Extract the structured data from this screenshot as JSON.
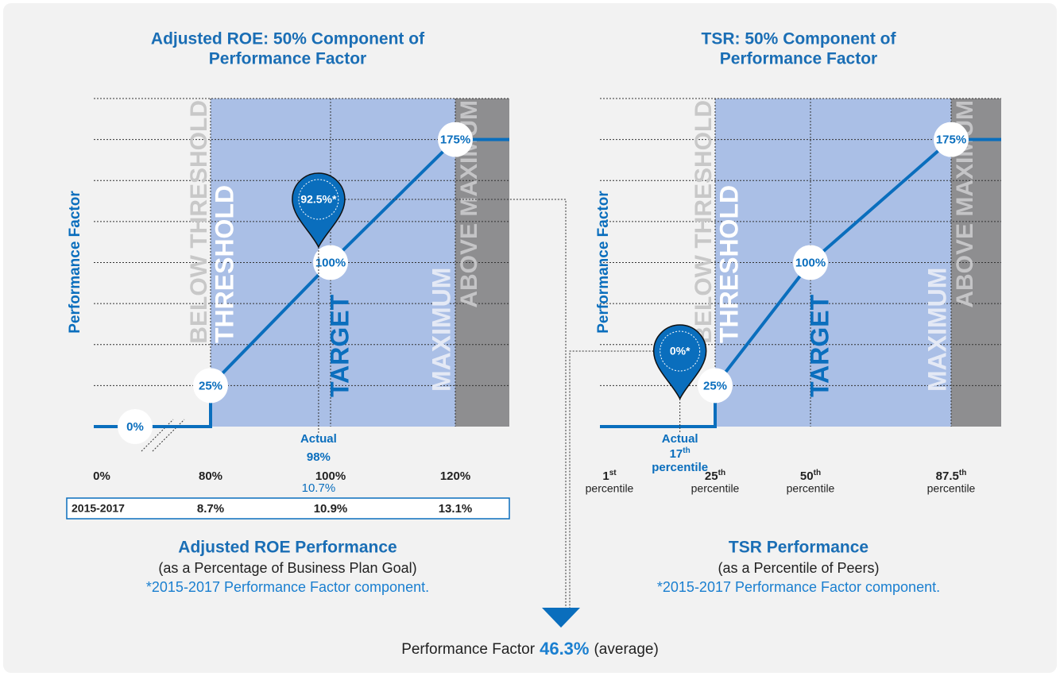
{
  "chart_data": [
    {
      "type": "line",
      "title": [
        "Adjusted ROE: 50% Component of",
        "Performance Factor"
      ],
      "ylabel": "Performance Factor",
      "ylim": [
        0,
        200
      ],
      "yticks": [
        0,
        25,
        50,
        75,
        100,
        125,
        150,
        175,
        200
      ],
      "grid": true,
      "color": "#0a6ebd",
      "zones": [
        "BELOW THRESHOLD",
        "THRESHOLD",
        "TARGET",
        "MAXIMUM",
        "ABOVE MAXIMUM"
      ],
      "xticks": [
        {
          "value": 0,
          "label": "0%"
        },
        {
          "value": 80,
          "label": "80%"
        },
        {
          "value": 100,
          "label": "100%"
        },
        {
          "value": 120,
          "label": "120%"
        }
      ],
      "x": [
        0,
        80,
        100,
        120
      ],
      "values": [
        0,
        25,
        100,
        175
      ],
      "value_labels": [
        "0%",
        "25%",
        "100%",
        "175%"
      ],
      "actual": {
        "x": 98,
        "value": 92.5,
        "value_label": "92.5%*",
        "label": "Actual",
        "x_label": "98%",
        "extra": "10.7%"
      },
      "table": {
        "label": "2015-2017",
        "values": [
          "8.7%",
          "10.9%",
          "13.1%"
        ]
      },
      "xlabel": "Adjusted ROE Performance",
      "subtitle": "(as a Percentage of Business Plan Goal)",
      "note": "*2015-2017 Performance Factor component."
    },
    {
      "type": "line",
      "title": [
        "TSR: 50% Component of",
        "Performance Factor"
      ],
      "ylabel": "Performance Factor",
      "ylim": [
        0,
        200
      ],
      "yticks": [
        0,
        25,
        50,
        75,
        100,
        125,
        150,
        175,
        200
      ],
      "grid": true,
      "color": "#0a6ebd",
      "zones": [
        "BELOW THRESHOLD",
        "THRESHOLD",
        "TARGET",
        "MAXIMUM",
        "ABOVE MAXIMUM"
      ],
      "xticks": [
        {
          "value": 1,
          "label": "1",
          "sup": "st",
          "sub": "percentile"
        },
        {
          "value": 25,
          "label": "25",
          "sup": "th",
          "sub": "percentile"
        },
        {
          "value": 50,
          "label": "50",
          "sup": "th",
          "sub": "percentile"
        },
        {
          "value": 87.5,
          "label": "87.5",
          "sup": "th",
          "sub": "percentile"
        }
      ],
      "x": [
        25,
        50,
        87.5
      ],
      "values": [
        25,
        100,
        175
      ],
      "value_labels": [
        "25%",
        "100%",
        "175%"
      ],
      "actual": {
        "x": 17,
        "value": 0,
        "value_label": "0%*",
        "label": "Actual",
        "x_label": "17",
        "x_sup": "th",
        "x_sub": "percentile"
      },
      "xlabel": "TSR Performance",
      "subtitle": "(as a Percentile of Peers)",
      "note": "*2015-2017 Performance Factor component."
    }
  ],
  "footer": {
    "label": "Performance Factor",
    "value": 46.3,
    "value_label": "46.3%",
    "note": "(average)"
  }
}
